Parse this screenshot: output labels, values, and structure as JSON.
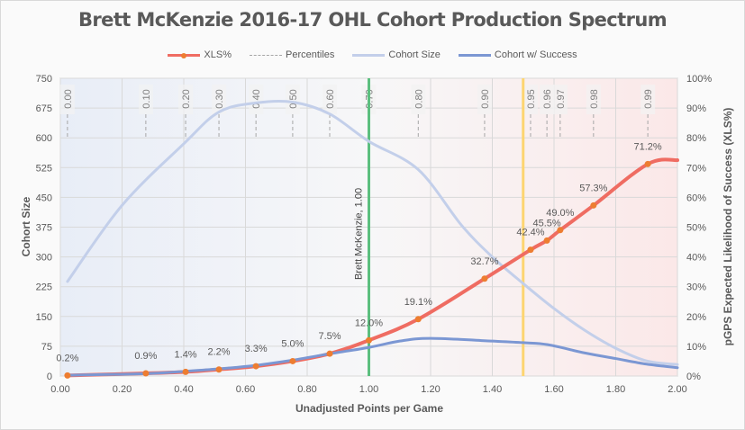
{
  "chart_data": {
    "type": "line",
    "title": "Brett McKenzie 2016-17 OHL Cohort Production Spectrum",
    "xlabel": "Unadjusted Points per Game",
    "ylabel_left": "Cohort Size",
    "ylabel_right": "pGPS Expected Likelihood of Success (XLS%)",
    "xlim": [
      0,
      2.0
    ],
    "ylim_left": [
      0,
      750
    ],
    "ylim_right": [
      0,
      100
    ],
    "x_ticks": [
      "0.00",
      "0.20",
      "0.40",
      "0.60",
      "0.80",
      "1.00",
      "1.20",
      "1.40",
      "1.60",
      "1.80",
      "2.00"
    ],
    "x_tick_values": [
      0,
      0.2,
      0.4,
      0.6,
      0.8,
      1.0,
      1.2,
      1.4,
      1.6,
      1.8,
      2.0
    ],
    "y_left_ticks": [
      0,
      75,
      150,
      225,
      300,
      375,
      450,
      525,
      600,
      675,
      750
    ],
    "y_right_ticks": [
      "0%",
      "10%",
      "20%",
      "30%",
      "40%",
      "50%",
      "60%",
      "70%",
      "80%",
      "90%",
      "100%"
    ],
    "y_right_tick_values": [
      0,
      10,
      20,
      30,
      40,
      50,
      60,
      70,
      80,
      90,
      100
    ],
    "grid": true,
    "legend_position": "top-center",
    "legend": [
      {
        "name": "XLS%",
        "color": "#ef6c62",
        "style": "line-marker"
      },
      {
        "name": "Percentiles",
        "color": "#a6a6a6",
        "style": "dashed"
      },
      {
        "name": "Cohort Size",
        "color": "#c3cfea",
        "style": "line"
      },
      {
        "name": "Cohort w/ Success",
        "color": "#7b97d3",
        "style": "line"
      }
    ],
    "series": [
      {
        "name": "XLS%",
        "axis": "right",
        "color": "#ef6c62",
        "marker_color": "#ed7d31",
        "points": [
          {
            "x": 0.023,
            "y": 0.2,
            "label": "0.2%"
          },
          {
            "x": 0.277,
            "y": 0.9,
            "label": "0.9%"
          },
          {
            "x": 0.406,
            "y": 1.4,
            "label": "1.4%"
          },
          {
            "x": 0.514,
            "y": 2.2,
            "label": "2.2%"
          },
          {
            "x": 0.634,
            "y": 3.3,
            "label": "3.3%"
          },
          {
            "x": 0.753,
            "y": 5.0,
            "label": "5.0%"
          },
          {
            "x": 0.873,
            "y": 7.5,
            "label": "7.5%"
          },
          {
            "x": 1.0,
            "y": 12.0,
            "label": "12.0%"
          },
          {
            "x": 1.16,
            "y": 19.1,
            "label": "19.1%"
          },
          {
            "x": 1.375,
            "y": 32.7,
            "label": "32.7%"
          },
          {
            "x": 1.524,
            "y": 42.4,
            "label": "42.4%"
          },
          {
            "x": 1.577,
            "y": 45.5,
            "label": "45.5%"
          },
          {
            "x": 1.62,
            "y": 49.0,
            "label": "49.0%"
          },
          {
            "x": 1.728,
            "y": 57.3,
            "label": "57.3%"
          },
          {
            "x": 1.904,
            "y": 71.2,
            "label": "71.2%"
          }
        ],
        "tail": {
          "x": 2.0,
          "y": 72.5
        }
      },
      {
        "name": "Cohort Size",
        "axis": "left",
        "color": "#c3cfea",
        "points": [
          {
            "x": 0.023,
            "y": 238
          },
          {
            "x": 0.2,
            "y": 430
          },
          {
            "x": 0.4,
            "y": 585
          },
          {
            "x": 0.514,
            "y": 665
          },
          {
            "x": 0.634,
            "y": 688
          },
          {
            "x": 0.753,
            "y": 690
          },
          {
            "x": 0.873,
            "y": 660
          },
          {
            "x": 1.0,
            "y": 591
          },
          {
            "x": 1.16,
            "y": 520
          },
          {
            "x": 1.3,
            "y": 380
          },
          {
            "x": 1.4,
            "y": 300
          },
          {
            "x": 1.5,
            "y": 233
          },
          {
            "x": 1.6,
            "y": 170
          },
          {
            "x": 1.7,
            "y": 115
          },
          {
            "x": 1.8,
            "y": 70
          },
          {
            "x": 1.9,
            "y": 38
          },
          {
            "x": 2.0,
            "y": 29
          }
        ]
      },
      {
        "name": "Cohort w/ Success",
        "axis": "left",
        "color": "#7b97d3",
        "points": [
          {
            "x": 0.023,
            "y": 2
          },
          {
            "x": 0.277,
            "y": 6
          },
          {
            "x": 0.406,
            "y": 12
          },
          {
            "x": 0.514,
            "y": 18
          },
          {
            "x": 0.634,
            "y": 27
          },
          {
            "x": 0.753,
            "y": 40
          },
          {
            "x": 0.873,
            "y": 56
          },
          {
            "x": 1.0,
            "y": 72
          },
          {
            "x": 1.1,
            "y": 88
          },
          {
            "x": 1.2,
            "y": 95
          },
          {
            "x": 1.4,
            "y": 88
          },
          {
            "x": 1.5,
            "y": 84
          },
          {
            "x": 1.58,
            "y": 79
          },
          {
            "x": 1.7,
            "y": 58
          },
          {
            "x": 1.8,
            "y": 44
          },
          {
            "x": 1.9,
            "y": 30
          },
          {
            "x": 2.0,
            "y": 21
          }
        ]
      }
    ],
    "percentiles": [
      {
        "label": "0.00",
        "x": 0.023
      },
      {
        "label": "0.10",
        "x": 0.277
      },
      {
        "label": "0.20",
        "x": 0.406
      },
      {
        "label": "0.30",
        "x": 0.514
      },
      {
        "label": "0.40",
        "x": 0.634
      },
      {
        "label": "0.50",
        "x": 0.753
      },
      {
        "label": "0.60",
        "x": 0.873
      },
      {
        "label": "0.70",
        "x": 1.0
      },
      {
        "label": "0.80",
        "x": 1.16
      },
      {
        "label": "0.90",
        "x": 1.375
      },
      {
        "label": "0.95",
        "x": 1.524
      },
      {
        "label": "0.96",
        "x": 1.577
      },
      {
        "label": "0.97",
        "x": 1.62
      },
      {
        "label": "0.98",
        "x": 1.728
      },
      {
        "label": "0.99",
        "x": 1.904
      }
    ],
    "reference_lines": [
      {
        "name": "player",
        "x": 1.0,
        "color": "#5cbf7f",
        "label": "Brett McKenzie, 1.00"
      },
      {
        "name": "threshold",
        "x": 1.5,
        "color": "#fdd571",
        "label": ""
      }
    ],
    "background": {
      "left_color": "#e8edf7",
      "mid_color": "#f7f7f8",
      "right_color": "#fbe8e8"
    }
  }
}
